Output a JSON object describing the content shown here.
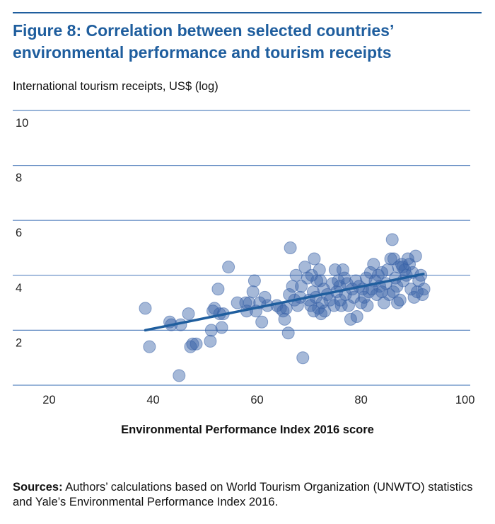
{
  "figure": {
    "title_line1": "Figure 8: Correlation between selected countries’",
    "title_line2": "environmental performance and tourism receipts",
    "sources_label": "Sources:",
    "sources_text": " Authors’ calculations based on World Tourism Organization (UNWTO) statistics and Yale’s Environmental Performance Index 2016."
  },
  "colors": {
    "accent": "#1f5e9e",
    "gridline": "#5b86c0",
    "point_fill": "#3a63a8",
    "trend": "#1f5e9e"
  },
  "chart_data": {
    "type": "scatter",
    "title": "Figure 8: Correlation between selected countries’ environmental performance and tourism receipts",
    "xlabel": "Environmental Performance Index 2016 score",
    "ylabel": "International tourism receipts, US$ (log)",
    "xlim": [
      13,
      101
    ],
    "ylim": [
      0,
      10
    ],
    "x_ticks": [
      20,
      40,
      60,
      80,
      100
    ],
    "y_ticks": [
      2,
      4,
      6,
      8,
      10
    ],
    "grid": "horizontal",
    "legend": "none",
    "trendline": {
      "x": [
        38.5,
        92
      ],
      "y": [
        2.0,
        4.05
      ]
    },
    "points": [
      [
        38.5,
        2.8
      ],
      [
        39.3,
        1.4
      ],
      [
        43.2,
        2.3
      ],
      [
        43.5,
        2.2
      ],
      [
        45.0,
        0.35
      ],
      [
        45.3,
        2.2
      ],
      [
        46.8,
        2.6
      ],
      [
        47.2,
        1.4
      ],
      [
        47.6,
        1.5
      ],
      [
        48.3,
        1.5
      ],
      [
        51.0,
        1.6
      ],
      [
        51.2,
        2.0
      ],
      [
        51.5,
        2.7
      ],
      [
        51.8,
        2.8
      ],
      [
        52.5,
        3.5
      ],
      [
        52.8,
        2.6
      ],
      [
        53.2,
        2.1
      ],
      [
        53.5,
        2.6
      ],
      [
        54.5,
        4.3
      ],
      [
        56.2,
        3.0
      ],
      [
        58.0,
        2.7
      ],
      [
        58.5,
        3.0
      ],
      [
        59.2,
        3.4
      ],
      [
        59.5,
        3.8
      ],
      [
        59.8,
        2.7
      ],
      [
        60.5,
        3.0
      ],
      [
        60.9,
        2.3
      ],
      [
        61.5,
        3.2
      ],
      [
        63.8,
        2.9
      ],
      [
        64.5,
        2.8
      ],
      [
        65.0,
        2.7
      ],
      [
        65.3,
        2.4
      ],
      [
        65.6,
        2.8
      ],
      [
        66.0,
        1.9
      ],
      [
        66.2,
        3.3
      ],
      [
        66.4,
        5.0
      ],
      [
        66.8,
        3.6
      ],
      [
        67.2,
        3.1
      ],
      [
        67.5,
        4.0
      ],
      [
        67.8,
        2.9
      ],
      [
        68.3,
        3.2
      ],
      [
        68.5,
        3.6
      ],
      [
        68.8,
        1.0
      ],
      [
        69.2,
        4.3
      ],
      [
        69.7,
        3.9
      ],
      [
        70.0,
        3.1
      ],
      [
        70.3,
        2.9
      ],
      [
        70.5,
        4.0
      ],
      [
        70.8,
        3.4
      ],
      [
        71.0,
        4.6
      ],
      [
        71.3,
        3.2
      ],
      [
        71.5,
        3.8
      ],
      [
        71.8,
        2.8
      ],
      [
        72.0,
        4.2
      ],
      [
        72.3,
        2.6
      ],
      [
        72.5,
        3.0
      ],
      [
        72.8,
        3.5
      ],
      [
        73.0,
        2.7
      ],
      [
        73.5,
        3.3
      ],
      [
        74.0,
        3.1
      ],
      [
        74.5,
        3.7
      ],
      [
        74.8,
        2.9
      ],
      [
        75.0,
        4.2
      ],
      [
        75.3,
        3.4
      ],
      [
        75.6,
        3.8
      ],
      [
        75.9,
        3.6
      ],
      [
        76.2,
        2.9
      ],
      [
        76.5,
        4.2
      ],
      [
        76.8,
        3.9
      ],
      [
        77.0,
        3.3
      ],
      [
        77.3,
        3.7
      ],
      [
        77.6,
        2.9
      ],
      [
        78.0,
        2.4
      ],
      [
        78.3,
        3.5
      ],
      [
        78.6,
        3.2
      ],
      [
        79.0,
        3.8
      ],
      [
        79.2,
        2.5
      ],
      [
        79.6,
        3.6
      ],
      [
        80.0,
        3.0
      ],
      [
        80.3,
        3.5
      ],
      [
        80.6,
        3.2
      ],
      [
        81.0,
        3.9
      ],
      [
        81.2,
        2.9
      ],
      [
        81.5,
        3.4
      ],
      [
        81.8,
        4.1
      ],
      [
        82.1,
        3.5
      ],
      [
        82.4,
        4.4
      ],
      [
        82.7,
        3.8
      ],
      [
        83.0,
        3.3
      ],
      [
        83.3,
        4.0
      ],
      [
        83.6,
        3.6
      ],
      [
        84.0,
        4.1
      ],
      [
        84.4,
        3.0
      ],
      [
        84.8,
        3.7
      ],
      [
        85.1,
        4.2
      ],
      [
        85.4,
        3.3
      ],
      [
        85.7,
        4.6
      ],
      [
        86.0,
        5.3
      ],
      [
        86.3,
        4.6
      ],
      [
        86.6,
        3.9
      ],
      [
        86.9,
        3.6
      ],
      [
        87.2,
        4.3
      ],
      [
        87.5,
        3.1
      ],
      [
        87.8,
        4.4
      ],
      [
        88.1,
        3.8
      ],
      [
        88.4,
        4.2
      ],
      [
        88.7,
        4.0
      ],
      [
        89.0,
        4.6
      ],
      [
        89.3,
        4.4
      ],
      [
        89.6,
        3.5
      ],
      [
        89.9,
        4.1
      ],
      [
        90.2,
        3.2
      ],
      [
        90.5,
        4.7
      ],
      [
        90.8,
        3.4
      ],
      [
        91.1,
        3.8
      ],
      [
        91.5,
        4.0
      ],
      [
        91.8,
        3.3
      ],
      [
        92.1,
        3.5
      ],
      [
        86.2,
        3.4
      ],
      [
        87.0,
        3.0
      ],
      [
        88.0,
        4.3
      ],
      [
        84.0,
        3.4
      ],
      [
        62.0,
        2.9
      ],
      [
        57.8,
        3.0
      ],
      [
        72.2,
        3.8
      ],
      [
        70.9,
        2.7
      ],
      [
        76.0,
        3.1
      ]
    ]
  }
}
